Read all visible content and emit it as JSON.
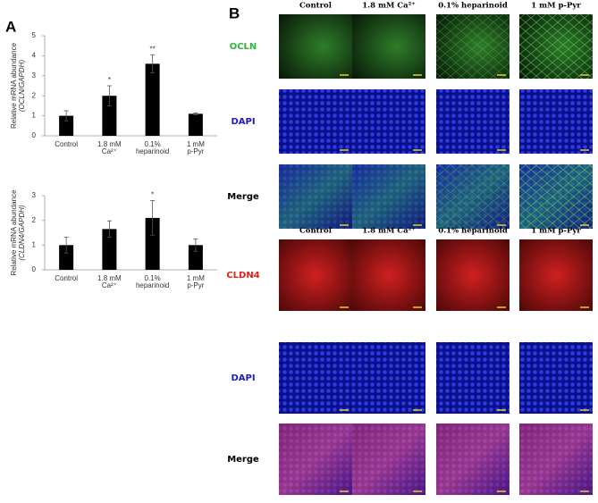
{
  "panel_labels": [
    "A",
    "B"
  ],
  "chart_data": [
    {
      "type": "bar",
      "y_label": [
        "Relative mRNA abundance",
        "(OCLN/GAPDH)"
      ],
      "categories": [
        [
          "Control"
        ],
        [
          "1.8 mM",
          "Ca²⁺"
        ],
        [
          "0.1%",
          "heparinoid"
        ],
        [
          "1 mM",
          "p-Pyr"
        ]
      ],
      "values": [
        1.0,
        2.0,
        3.6,
        1.1
      ],
      "errors": [
        0.25,
        0.5,
        0.45,
        0.05
      ],
      "annotations": [
        null,
        "*",
        "**",
        null
      ],
      "color": "#000000",
      "ylim": [
        0,
        5
      ],
      "yticks": [
        0,
        1,
        2,
        3,
        4,
        5
      ]
    },
    {
      "type": "bar",
      "y_label": [
        "Relative mRNA abundance",
        "(CLDN4/GAPDH)"
      ],
      "categories": [
        [
          "Control"
        ],
        [
          "1.8 mM",
          "Ca²⁺"
        ],
        [
          "0.1%",
          "heparinoid"
        ],
        [
          "1 mM",
          "p-Pyr"
        ]
      ],
      "values": [
        1.0,
        1.65,
        2.1,
        1.0
      ],
      "errors": [
        0.32,
        0.33,
        0.7,
        0.25
      ],
      "annotations": [
        null,
        null,
        "*",
        null
      ],
      "color": "#000000",
      "ylim": [
        0,
        3
      ],
      "yticks": [
        0,
        1,
        2,
        3
      ]
    }
  ],
  "micrographs": {
    "blocks": [
      {
        "column_headers": [
          "Control",
          "1.8 mM Ca²⁺",
          "0.1% heparinoid",
          "1 mM p-Pyr"
        ],
        "row_labels": [
          "OCLN",
          "DAPI",
          "Merge"
        ],
        "row_label_colors": [
          "#2db53b",
          "#1a1ac8",
          "#000000"
        ]
      },
      {
        "column_headers": [
          "Control",
          "1.8 mM Ca²⁺",
          "0.1% heparinoid",
          "1 mM p-Pyr"
        ],
        "row_labels": [
          "CLDN4",
          "DAPI",
          "Merge"
        ],
        "row_label_colors": [
          "#e0201b",
          "#1a1ac8",
          "#000000"
        ]
      }
    ]
  }
}
